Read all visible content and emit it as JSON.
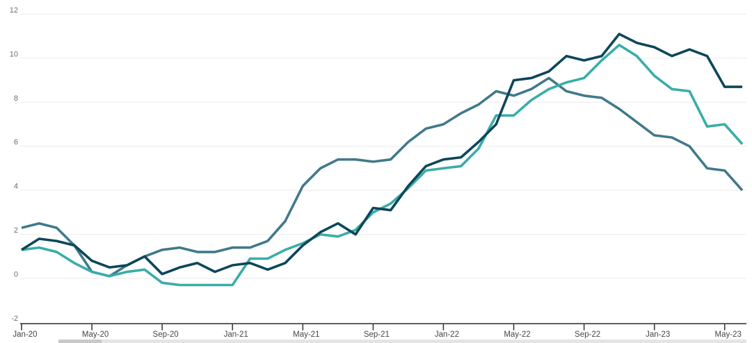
{
  "chart": {
    "title": "",
    "y_axis": {
      "tick_labels": [
        "12",
        "10",
        "8",
        "6",
        "4",
        "2",
        "0",
        "-2"
      ],
      "tick_values": [
        12,
        10,
        8,
        6,
        4,
        2,
        0,
        -2
      ]
    },
    "x_axis": {
      "tick_labels": [
        "Jan-20",
        "May-20",
        "Sep-20",
        "Jan-21",
        "May-21",
        "Sep-21",
        "Jan-22",
        "May-22",
        "Sep-22",
        "Jan-23",
        "May-23"
      ]
    },
    "colors": {
      "dark_teal_line": "#0d4659",
      "slate_blue_line": "#41798b",
      "light_teal_line": "#39ada8",
      "gridline": "#ebebeb",
      "axis_line": "#3a3a3a",
      "y_label": "#6e6e6e",
      "x_label": "#464646"
    }
  },
  "chart_data": {
    "type": "line",
    "x_interval": "monthly",
    "x": [
      "Dec-19",
      "Jan-20",
      "Feb-20",
      "Mar-20",
      "Apr-20",
      "May-20",
      "Jun-20",
      "Jul-20",
      "Aug-20",
      "Sep-20",
      "Oct-20",
      "Nov-20",
      "Dec-20",
      "Jan-21",
      "Feb-21",
      "Mar-21",
      "Apr-21",
      "May-21",
      "Jun-21",
      "Jul-21",
      "Aug-21",
      "Sep-21",
      "Oct-21",
      "Nov-21",
      "Dec-21",
      "Jan-22",
      "Feb-22",
      "Mar-22",
      "Apr-22",
      "May-22",
      "Jun-22",
      "Jul-22",
      "Aug-22",
      "Sep-22",
      "Oct-22",
      "Nov-22",
      "Dec-22",
      "Jan-23",
      "Feb-23",
      "Mar-23",
      "Apr-23",
      "May-23"
    ],
    "series": [
      {
        "name": "slate-blue-line",
        "color": "#41798b",
        "values": [
          2.3,
          2.5,
          2.3,
          1.5,
          0.3,
          0.1,
          0.6,
          1.0,
          1.3,
          1.4,
          1.2,
          1.2,
          1.4,
          1.4,
          1.7,
          2.6,
          4.2,
          5.0,
          5.4,
          5.4,
          5.3,
          5.4,
          6.2,
          6.8,
          7.0,
          7.5,
          7.9,
          8.5,
          8.3,
          8.6,
          9.1,
          8.5,
          8.3,
          8.2,
          7.7,
          7.1,
          6.5,
          6.4,
          6.0,
          5.0,
          4.9,
          4.0
        ]
      },
      {
        "name": "light-teal-line",
        "color": "#39ada8",
        "values": [
          1.3,
          1.4,
          1.2,
          0.7,
          0.3,
          0.1,
          0.3,
          0.4,
          -0.2,
          -0.3,
          -0.3,
          -0.3,
          -0.3,
          0.9,
          0.9,
          1.3,
          1.6,
          2.0,
          1.9,
          2.2,
          3.0,
          3.4,
          4.1,
          4.9,
          5.0,
          5.1,
          5.9,
          7.4,
          7.4,
          8.1,
          8.6,
          8.9,
          9.1,
          9.9,
          10.6,
          10.1,
          9.2,
          8.6,
          8.5,
          6.9,
          7.0,
          6.1
        ]
      },
      {
        "name": "dark-teal-line",
        "color": "#0d4659",
        "values": [
          1.3,
          1.8,
          1.7,
          1.5,
          0.8,
          0.5,
          0.6,
          1.0,
          0.2,
          0.5,
          0.7,
          0.3,
          0.6,
          0.7,
          0.4,
          0.7,
          1.5,
          2.1,
          2.5,
          2.0,
          3.2,
          3.1,
          4.2,
          5.1,
          5.4,
          5.5,
          6.2,
          7.0,
          9.0,
          9.1,
          9.4,
          10.1,
          9.9,
          10.1,
          11.1,
          10.7,
          10.5,
          10.1,
          10.4,
          10.1,
          8.7,
          8.7
        ]
      }
    ],
    "ylim": [
      -2,
      12
    ],
    "y_tick_step": 2,
    "grid": "horizontal",
    "legend": "none",
    "title": "",
    "xlabel": "",
    "ylabel": "",
    "x_tick_labels": [
      "Jan-20",
      "May-20",
      "Sep-20",
      "Jan-21",
      "May-21",
      "Sep-21",
      "Jan-22",
      "May-22",
      "Sep-22",
      "Jan-23",
      "May-23"
    ],
    "x_tick_every_n_months": 4
  }
}
